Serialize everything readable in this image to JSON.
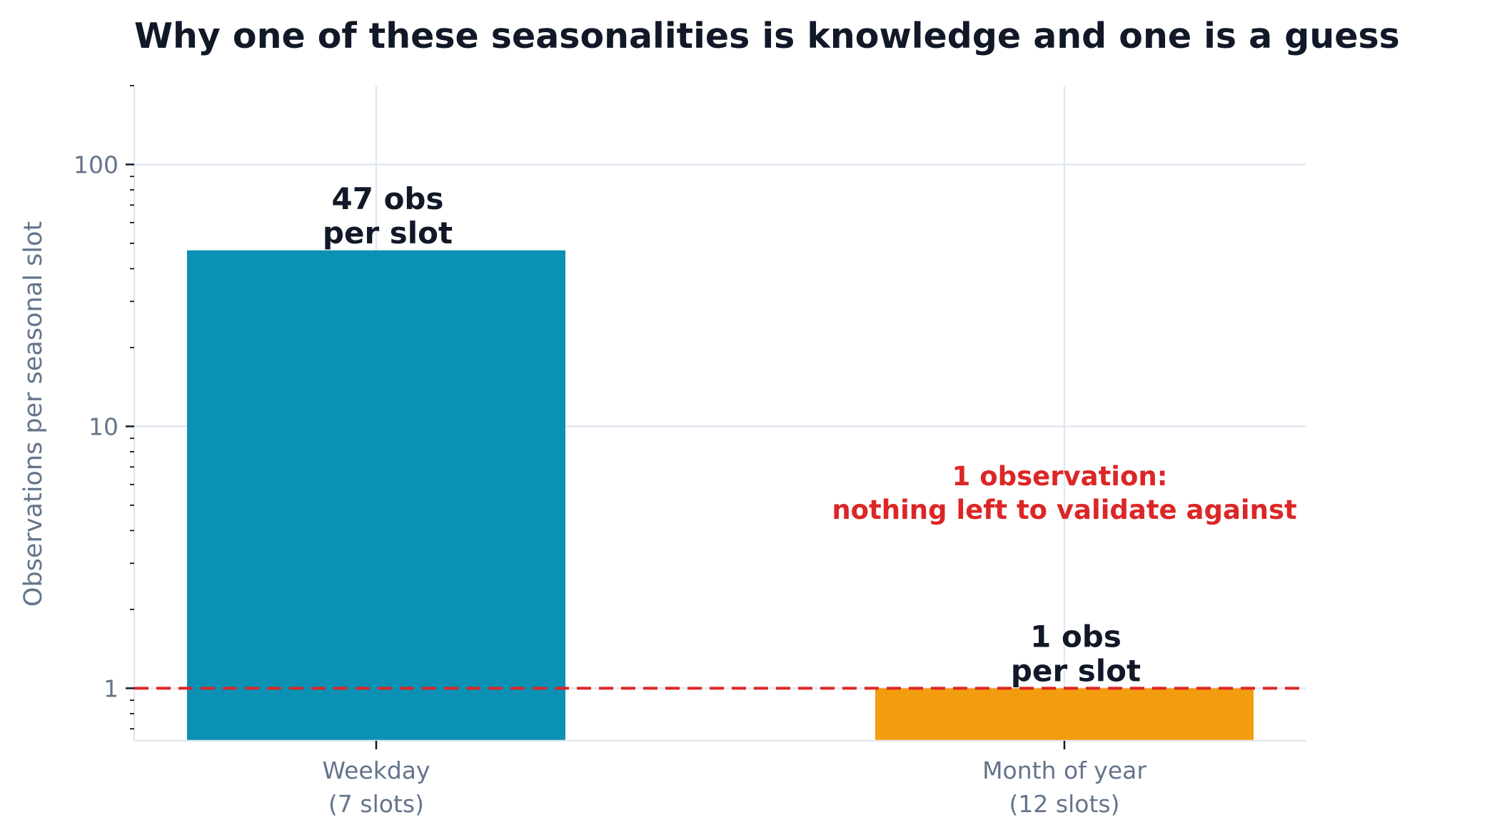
{
  "chart_data": {
    "type": "bar",
    "title": "Why one of these seasonalities is knowledge and one is a guess",
    "xlabel": "",
    "ylabel": "Observations per seasonal slot",
    "yscale": "log",
    "ylim": [
      0.63,
      200
    ],
    "yticks": [
      1,
      10,
      100
    ],
    "ytick_labels": [
      "1",
      "10",
      "100"
    ],
    "grid": true,
    "categories": [
      {
        "line1": "Weekday",
        "line2": "(7 slots)"
      },
      {
        "line1": "Month of year",
        "line2": "(12 slots)"
      }
    ],
    "values": [
      47,
      1
    ],
    "colors": [
      "#0a91b4",
      "#f39c0f"
    ],
    "bar_labels": [
      {
        "line1": "47 obs",
        "line2": "per slot"
      },
      {
        "line1": "1 obs",
        "line2": "per slot"
      }
    ],
    "reference_line": {
      "y": 1,
      "style": "dashed",
      "color": "#dc2626"
    },
    "annotation": {
      "line1": "1 observation:",
      "line2": "nothing left to validate against",
      "color": "#dc2626",
      "x_category": 1,
      "y": 5.8
    }
  }
}
